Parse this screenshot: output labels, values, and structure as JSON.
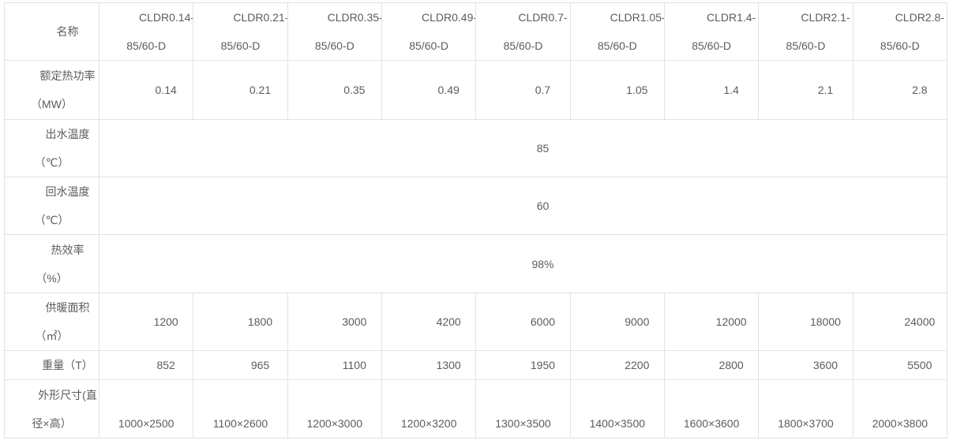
{
  "page": {
    "background": "#ffffff"
  },
  "table": {
    "colors": {
      "border": "#e2e2e2",
      "text": "#5c5c5c",
      "background": "#ffffff"
    },
    "name_header": "名称",
    "columns": [
      {
        "model_line1": "CLDR0.14-",
        "model_line2": "85/60-D"
      },
      {
        "model_line1": "CLDR0.21-",
        "model_line2": "85/60-D"
      },
      {
        "model_line1": "CLDR0.35-",
        "model_line2": "85/60-D"
      },
      {
        "model_line1": "CLDR0.49-",
        "model_line2": "85/60-D"
      },
      {
        "model_line1": "CLDR0.7-",
        "model_line2": "85/60-D"
      },
      {
        "model_line1": "CLDR1.05-",
        "model_line2": "85/60-D"
      },
      {
        "model_line1": "CLDR1.4-",
        "model_line2": "85/60-D"
      },
      {
        "model_line1": "CLDR2.1-",
        "model_line2": "85/60-D"
      },
      {
        "model_line1": "CLDR2.8-",
        "model_line2": "85/60-D"
      }
    ],
    "rows": {
      "power": {
        "label_line1": "额定热功率",
        "label_line2": "（MW）",
        "values": [
          "0.14",
          "0.21",
          "0.35",
          "0.49",
          "0.7",
          "1.05",
          "1.4",
          "2.1",
          "2.8"
        ]
      },
      "outlet_temp": {
        "label_line1": "出水温度",
        "label_line2": "（℃）",
        "value": "85"
      },
      "return_temp": {
        "label_line1": "回水温度",
        "label_line2": "（℃）",
        "value": "60"
      },
      "efficiency": {
        "label_line1": "热效率",
        "label_line2": "（%）",
        "value": "98%"
      },
      "area": {
        "label_line1": "供暖面积",
        "label_line2": "（㎡）",
        "values": [
          "1200",
          "1800",
          "3000",
          "4200",
          "6000",
          "9000",
          "12000",
          "18000",
          "24000"
        ]
      },
      "weight": {
        "label": "重量（T）",
        "values": [
          "852",
          "965",
          "1100",
          "1300",
          "1950",
          "2200",
          "2800",
          "3600",
          "5500"
        ]
      },
      "size": {
        "label_line1": "外形尺寸(直",
        "label_line2": "径×高）",
        "values": [
          "1000×2500",
          "1100×2600",
          "1200×3000",
          "1200×3200",
          "1300×3500",
          "1400×3500",
          "1600×3600",
          "1800×3700",
          "2000×3800"
        ]
      }
    }
  },
  "chart_data": {
    "type": "table",
    "columns": [
      "名称",
      "CLDR0.14-85/60-D",
      "CLDR0.21-85/60-D",
      "CLDR0.35-85/60-D",
      "CLDR0.49-85/60-D",
      "CLDR0.7-85/60-D",
      "CLDR1.05-85/60-D",
      "CLDR1.4-85/60-D",
      "CLDR2.1-85/60-D",
      "CLDR2.8-85/60-D"
    ],
    "rows": [
      [
        "额定热功率（MW）",
        "0.14",
        "0.21",
        "0.35",
        "0.49",
        "0.7",
        "1.05",
        "1.4",
        "2.1",
        "2.8"
      ],
      [
        "出水温度（℃）",
        "85"
      ],
      [
        "回水温度（℃）",
        "60"
      ],
      [
        "热效率（%）",
        "98%"
      ],
      [
        "供暖面积（㎡）",
        "1200",
        "1800",
        "3000",
        "4200",
        "6000",
        "9000",
        "12000",
        "18000",
        "24000"
      ],
      [
        "重量（T）",
        "852",
        "965",
        "1100",
        "1300",
        "1950",
        "2200",
        "2800",
        "3600",
        "5500"
      ],
      [
        "外形尺寸(直径×高）",
        "1000×2500",
        "1100×2600",
        "1200×3000",
        "1200×3200",
        "1300×3500",
        "1400×3500",
        "1600×3600",
        "1800×3700",
        "2000×3800"
      ]
    ]
  }
}
